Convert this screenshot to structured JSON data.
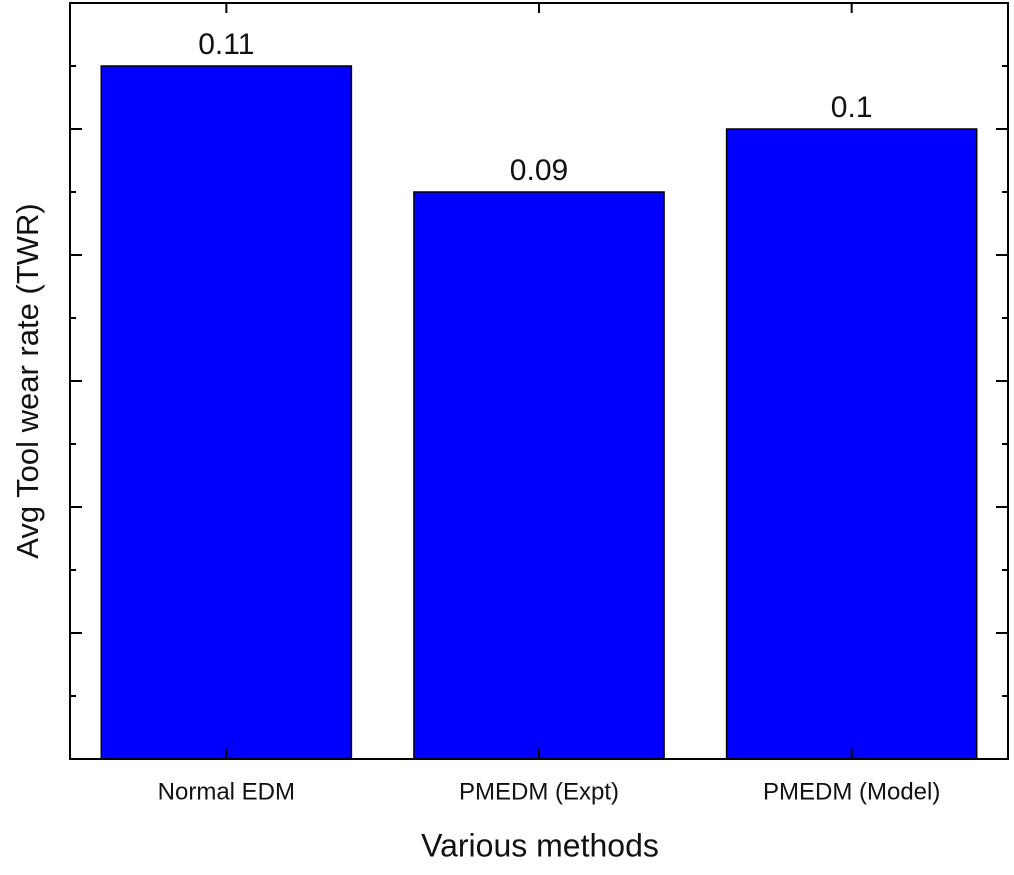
{
  "chart_data": {
    "type": "bar",
    "x_label": "Various methods",
    "y_label": "Avg Tool wear rate (TWR)",
    "categories": [
      "Normal EDM",
      "PMEDM (Expt)",
      "PMEDM (Model)"
    ],
    "values": [
      0.11,
      0.09,
      0.1
    ],
    "color": "#0000ff",
    "ylim": [
      0,
      0.12
    ],
    "yticks": [
      0,
      0.02,
      0.04,
      0.06,
      0.08,
      0.1,
      0.12
    ]
  }
}
